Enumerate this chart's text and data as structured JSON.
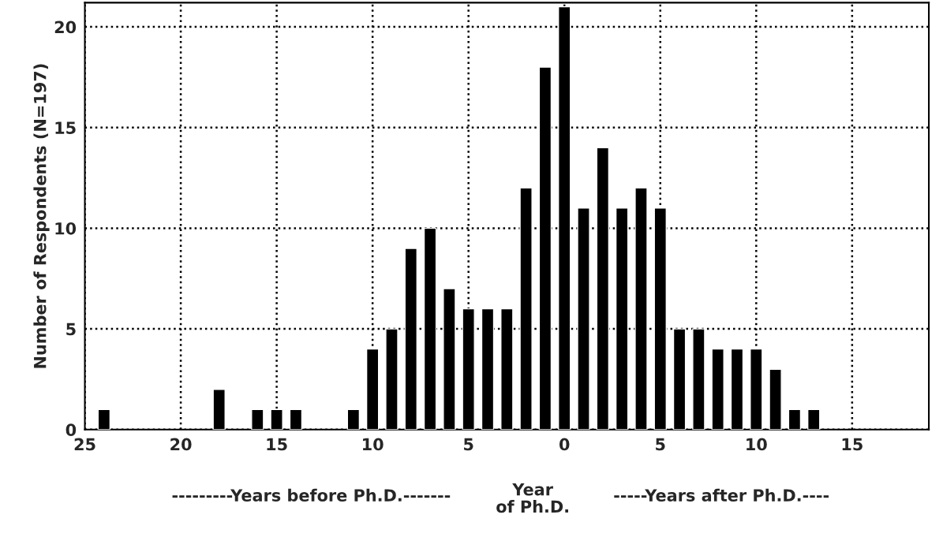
{
  "chart_data": {
    "type": "bar",
    "ylabel": "Number of Respondents (N=197)",
    "x": [
      -24,
      -18,
      -16,
      -15,
      -14,
      -11,
      -10,
      -9,
      -8,
      -7,
      -6,
      -5,
      -4,
      -3,
      -2,
      -1,
      0,
      1,
      2,
      3,
      4,
      5,
      6,
      7,
      8,
      9,
      10,
      11,
      12,
      13
    ],
    "values": [
      1,
      2,
      1,
      1,
      1,
      1,
      4,
      5,
      9,
      10,
      7,
      6,
      6,
      6,
      12,
      18,
      21,
      11,
      14,
      11,
      12,
      11,
      5,
      5,
      4,
      4,
      4,
      3,
      1,
      1
    ],
    "color": "#000000",
    "xlim": [
      -25,
      19
    ],
    "xticks": [
      {
        "value": -25,
        "label": "25"
      },
      {
        "value": -20,
        "label": "20"
      },
      {
        "value": -15,
        "label": "15"
      },
      {
        "value": -10,
        "label": "10"
      },
      {
        "value": -5,
        "label": "5"
      },
      0,
      5,
      10,
      15
    ],
    "ylim": [
      0,
      21.2
    ],
    "yticks": [
      0,
      5,
      10,
      15,
      20
    ],
    "grid": true,
    "line_style": "dotted",
    "annotations": [
      "---------Years before Ph.D.-------",
      "Year\nof Ph.D.",
      "-----Years after Ph.D.----"
    ]
  }
}
